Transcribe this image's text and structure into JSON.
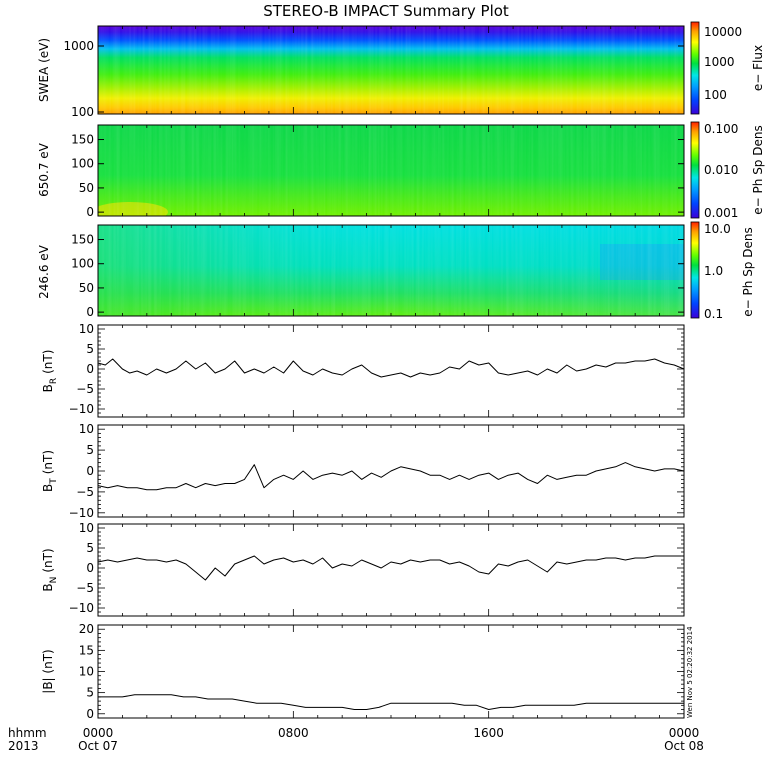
{
  "title": "STEREO-B IMPACT Summary Plot",
  "timestamp": "Wen Nov 5 02:20:32 2014",
  "time_axis": {
    "row1_label": "hhmm",
    "row2_label": "2013",
    "ticks": [
      {
        "hours": 0,
        "top": "0000",
        "bottom": "Oct 07"
      },
      {
        "hours": 8,
        "top": "0800",
        "bottom": ""
      },
      {
        "hours": 16,
        "top": "1600",
        "bottom": ""
      },
      {
        "hours": 24,
        "top": "0000",
        "bottom": "Oct 08"
      }
    ],
    "range_hours": [
      0,
      24
    ]
  },
  "colors": {
    "spectrogram_scale": [
      "#3b00d8",
      "#0044ff",
      "#00a0ff",
      "#00e6e6",
      "#00e040",
      "#60ff00",
      "#ffff00",
      "#ffa000",
      "#ff2000"
    ],
    "line": "#000000"
  },
  "chart_data": [
    {
      "type": "heatmap",
      "ylabel": "SWEA (eV)",
      "yscale": "log",
      "yticks": [
        "1000",
        "100"
      ],
      "colorbar": {
        "label": "e− Flux",
        "scale": "log",
        "ticks": [
          "10000",
          "1000",
          "100"
        ]
      }
    },
    {
      "type": "heatmap",
      "ylabel": "650.7 eV",
      "yticks": [
        "150",
        "100",
        "50",
        "0"
      ],
      "ylim": [
        -8,
        180
      ],
      "colorbar": {
        "label": "e− Ph Sp Dens",
        "scale": "log",
        "ticks": [
          "0.100",
          "0.010",
          "0.001"
        ]
      }
    },
    {
      "type": "heatmap",
      "ylabel": "246.6 eV",
      "yticks": [
        "150",
        "100",
        "50",
        "0"
      ],
      "ylim": [
        -8,
        180
      ],
      "colorbar": {
        "label": "e− Ph Sp Dens",
        "scale": "log",
        "ticks": [
          "10.0",
          "1.0",
          "0.1"
        ]
      }
    },
    {
      "type": "line",
      "ylabel": "B",
      "ylabel_sub": "R",
      "ylabel_unit": "(nT)",
      "ylim": [
        -12,
        11
      ],
      "yticks": [
        "10",
        "5",
        "0",
        "−5",
        "−10"
      ],
      "ytick_values": [
        10,
        5,
        0,
        -5,
        -10
      ],
      "x": [
        0,
        0.3,
        0.6,
        1,
        1.3,
        1.6,
        2,
        2.4,
        2.8,
        3.2,
        3.6,
        4,
        4.4,
        4.8,
        5.2,
        5.6,
        6,
        6.4,
        6.8,
        7.2,
        7.6,
        8,
        8.4,
        8.8,
        9.2,
        9.6,
        10,
        10.4,
        10.8,
        11.2,
        11.6,
        12,
        12.4,
        12.8,
        13.2,
        13.6,
        14,
        14.4,
        14.8,
        15.2,
        15.6,
        16,
        16.4,
        16.8,
        17.2,
        17.6,
        18,
        18.4,
        18.8,
        19.2,
        19.6,
        20,
        20.4,
        20.8,
        21.2,
        21.6,
        22,
        22.4,
        22.8,
        23.2,
        23.6,
        24
      ],
      "y": [
        1.5,
        1,
        2.5,
        0,
        -1,
        -0.5,
        -1.5,
        0,
        -1,
        0,
        2,
        0,
        1.5,
        -1,
        0,
        2,
        -1,
        0,
        -1,
        0.5,
        -1,
        2,
        -0.5,
        -1.5,
        0,
        -1,
        -1.5,
        0,
        1,
        -1,
        -2,
        -1.5,
        -1,
        -2,
        -1,
        -1.5,
        -1,
        0.5,
        0,
        2,
        1,
        1.5,
        -1,
        -1.5,
        -1,
        -0.5,
        -1.5,
        0,
        -1,
        1,
        -0.5,
        0,
        1,
        0.5,
        1.5,
        1.5,
        2,
        2,
        2.5,
        1.5,
        1,
        0
      ]
    },
    {
      "type": "line",
      "ylabel": "B",
      "ylabel_sub": "T",
      "ylabel_unit": "(nT)",
      "ylim": [
        -11,
        11
      ],
      "yticks": [
        "10",
        "5",
        "0",
        "−5",
        "−10"
      ],
      "ytick_values": [
        10,
        5,
        0,
        -5,
        -10
      ],
      "x": [
        0,
        0.4,
        0.8,
        1.2,
        1.6,
        2,
        2.4,
        2.8,
        3.2,
        3.6,
        4,
        4.4,
        4.8,
        5.2,
        5.6,
        6,
        6.4,
        6.8,
        7.2,
        7.6,
        8,
        8.4,
        8.8,
        9.2,
        9.6,
        10,
        10.4,
        10.8,
        11.2,
        11.6,
        12,
        12.4,
        12.8,
        13.2,
        13.6,
        14,
        14.4,
        14.8,
        15.2,
        15.6,
        16,
        16.4,
        16.8,
        17.2,
        17.6,
        18,
        18.4,
        18.8,
        19.2,
        19.6,
        20,
        20.4,
        20.8,
        21.2,
        21.6,
        22,
        22.4,
        22.8,
        23.2,
        23.6,
        24
      ],
      "y": [
        -3.5,
        -4,
        -3.5,
        -4,
        -4,
        -4.5,
        -4.5,
        -4,
        -4,
        -3,
        -4,
        -3,
        -3.5,
        -3,
        -3,
        -2,
        1.5,
        -4,
        -2,
        -1,
        -2,
        0,
        -2,
        -1,
        -0.5,
        -1,
        0,
        -2,
        -0.5,
        -1.5,
        0,
        1,
        0.5,
        0,
        -1,
        -1,
        -2,
        -1,
        -2,
        -1,
        -0.5,
        -2,
        -1,
        -0.5,
        -2,
        -3,
        -1,
        -2,
        -1.5,
        -1,
        -1,
        0,
        0.5,
        1,
        2,
        1,
        0.5,
        0,
        0.5,
        0.5,
        0
      ]
    },
    {
      "type": "line",
      "ylabel": "B",
      "ylabel_sub": "N",
      "ylabel_unit": "(nT)",
      "ylim": [
        -12,
        11
      ],
      "yticks": [
        "10",
        "5",
        "0",
        "−5",
        "−10"
      ],
      "ytick_values": [
        10,
        5,
        0,
        -5,
        -10
      ],
      "x": [
        0,
        0.4,
        0.8,
        1.2,
        1.6,
        2,
        2.4,
        2.8,
        3.2,
        3.6,
        4,
        4.4,
        4.8,
        5.2,
        5.6,
        6,
        6.4,
        6.8,
        7.2,
        7.6,
        8,
        8.4,
        8.8,
        9.2,
        9.6,
        10,
        10.4,
        10.8,
        11.2,
        11.6,
        12,
        12.4,
        12.8,
        13.2,
        13.6,
        14,
        14.4,
        14.8,
        15.2,
        15.6,
        16,
        16.4,
        16.8,
        17.2,
        17.6,
        18,
        18.4,
        18.8,
        19.2,
        19.6,
        20,
        20.4,
        20.8,
        21.2,
        21.6,
        22,
        22.4,
        22.8,
        23.2,
        23.6,
        24
      ],
      "y": [
        1.5,
        2,
        1.5,
        2,
        2.5,
        2,
        2,
        1.5,
        2,
        1,
        -1,
        -3,
        0,
        -2,
        1,
        2,
        3,
        1,
        2,
        2.5,
        1.5,
        2,
        1,
        2.5,
        0,
        1,
        0.5,
        2,
        1,
        0,
        1.5,
        1,
        2,
        1.5,
        2,
        2,
        1,
        1.5,
        0.5,
        -1,
        -1.5,
        1,
        0.5,
        1.5,
        2,
        0.5,
        -1,
        1.5,
        1,
        1.5,
        2,
        2,
        2.5,
        2.5,
        2,
        2.5,
        2.5,
        3,
        3,
        3,
        3
      ]
    },
    {
      "type": "line",
      "ylabel": "|B| (nT)",
      "ylim": [
        -1,
        21
      ],
      "yticks": [
        "20",
        "15",
        "10",
        "5",
        "0"
      ],
      "ytick_values": [
        20,
        15,
        10,
        5,
        0
      ],
      "x": [
        0,
        0.5,
        1,
        1.5,
        2,
        2.5,
        3,
        3.5,
        4,
        4.5,
        5,
        5.5,
        6,
        6.5,
        7,
        7.5,
        8,
        8.5,
        9,
        9.5,
        10,
        10.5,
        11,
        11.5,
        12,
        12.5,
        13,
        13.5,
        14,
        14.5,
        15,
        15.5,
        16,
        16.5,
        17,
        17.5,
        18,
        18.5,
        19,
        19.5,
        20,
        20.5,
        21,
        21.5,
        22,
        22.5,
        23,
        23.5,
        24
      ],
      "y": [
        4,
        4,
        4,
        4.5,
        4.5,
        4.5,
        4.5,
        4,
        4,
        3.5,
        3.5,
        3.5,
        3,
        2.5,
        2.5,
        2.5,
        2,
        1.5,
        1.5,
        1.5,
        1.5,
        1,
        1,
        1.5,
        2.5,
        2.5,
        2.5,
        2.5,
        2.5,
        2.5,
        2,
        2,
        1,
        1.5,
        1.5,
        2,
        2,
        2,
        2,
        2,
        2.5,
        2.5,
        2.5,
        2.5,
        2.5,
        2.5,
        2.5,
        2.5,
        2.5
      ]
    }
  ]
}
